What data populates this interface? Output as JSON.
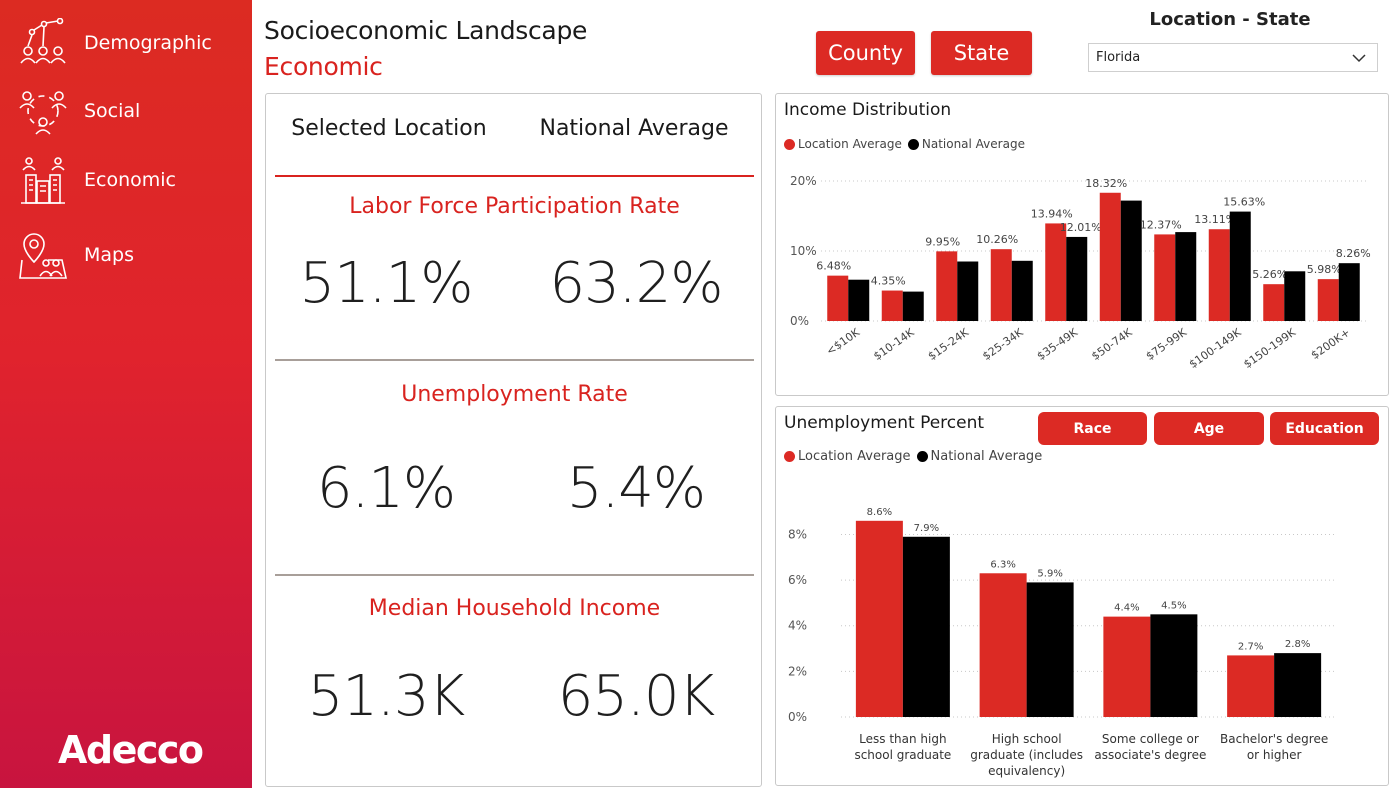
{
  "colors": {
    "accent": "#dc2a24",
    "national": "#000000",
    "location": "#dc2a24",
    "divider_red": "#d9231f",
    "divider_gray": "#a89f99"
  },
  "sidebar": {
    "items": [
      {
        "label": "Demographic",
        "icon": "people-network-icon"
      },
      {
        "label": "Social",
        "icon": "social-circle-icon"
      },
      {
        "label": "Economic",
        "icon": "city-buildings-icon"
      },
      {
        "label": "Maps",
        "icon": "map-pin-icon"
      }
    ],
    "logo": "Adecco"
  },
  "header": {
    "title": "Socioeconomic Landscape",
    "subtitle": "Economic",
    "county_label": "County",
    "state_label": "State",
    "location_title": "Location - State",
    "location_value": "Florida"
  },
  "stats": {
    "col_selected": "Selected Location",
    "col_national": "National Average",
    "metrics": [
      {
        "title": "Labor Force Participation Rate",
        "selected": "51.1%",
        "national": "63.2%"
      },
      {
        "title": "Unemployment Rate",
        "selected": "6.1%",
        "national": "5.4%"
      },
      {
        "title": "Median Household Income",
        "selected": "51.3K",
        "national": "65.0K"
      }
    ]
  },
  "income": {
    "title": "Income Distribution",
    "legend_location": "Location Average",
    "legend_national": "National Average"
  },
  "unemployment": {
    "title": "Unemployment Percent",
    "btn_race": "Race",
    "btn_age": "Age",
    "btn_education": "Education",
    "legend_location": "Location Average",
    "legend_national": "National Average"
  },
  "chart_data": [
    {
      "type": "bar",
      "title": "Income Distribution",
      "categories": [
        "<$10K",
        "$10-14K",
        "$15-24K",
        "$25-34K",
        "$35-49K",
        "$50-74K",
        "$75-99K",
        "$100-149K",
        "$150-199K",
        "$200K+"
      ],
      "series": [
        {
          "name": "Location Average",
          "values": [
            6.48,
            4.35,
            9.95,
            10.26,
            13.94,
            18.32,
            12.37,
            13.11,
            5.26,
            5.98
          ],
          "labels": [
            "6.48%",
            "4.35%",
            "9.95%",
            "10.26%",
            "13.94%",
            "18.32%",
            "12.37%",
            "13.11%",
            "5.26%",
            "5.98%"
          ]
        },
        {
          "name": "National Average",
          "values": [
            5.9,
            4.2,
            8.5,
            8.6,
            12.01,
            17.2,
            12.7,
            15.63,
            7.1,
            8.26
          ],
          "labels": [
            "",
            "",
            "",
            "",
            "12.01%",
            "",
            "",
            "15.63%",
            "",
            "8.26%"
          ]
        }
      ],
      "yticks": [
        "0%",
        "10%",
        "20%"
      ],
      "ylim": [
        0,
        20
      ],
      "grid": true,
      "legend": "top-left"
    },
    {
      "type": "bar",
      "title": "Unemployment Percent",
      "categories": [
        [
          "Less than high",
          "school graduate"
        ],
        [
          "High school",
          "graduate (includes",
          "equivalency)"
        ],
        [
          "Some college or",
          "associate's degree"
        ],
        [
          "Bachelor's degree",
          "or higher"
        ]
      ],
      "series": [
        {
          "name": "Location Average",
          "values": [
            8.6,
            6.3,
            4.4,
            2.7
          ],
          "labels": [
            "8.6%",
            "6.3%",
            "4.4%",
            "2.7%"
          ]
        },
        {
          "name": "National Average",
          "values": [
            7.9,
            5.9,
            4.5,
            2.8
          ],
          "labels": [
            "7.9%",
            "5.9%",
            "4.5%",
            "2.8%"
          ]
        }
      ],
      "yticks": [
        "0%",
        "2%",
        "4%",
        "6%",
        "8%"
      ],
      "ylim": [
        0,
        8.6
      ],
      "grid": true,
      "legend": "top-left"
    }
  ]
}
